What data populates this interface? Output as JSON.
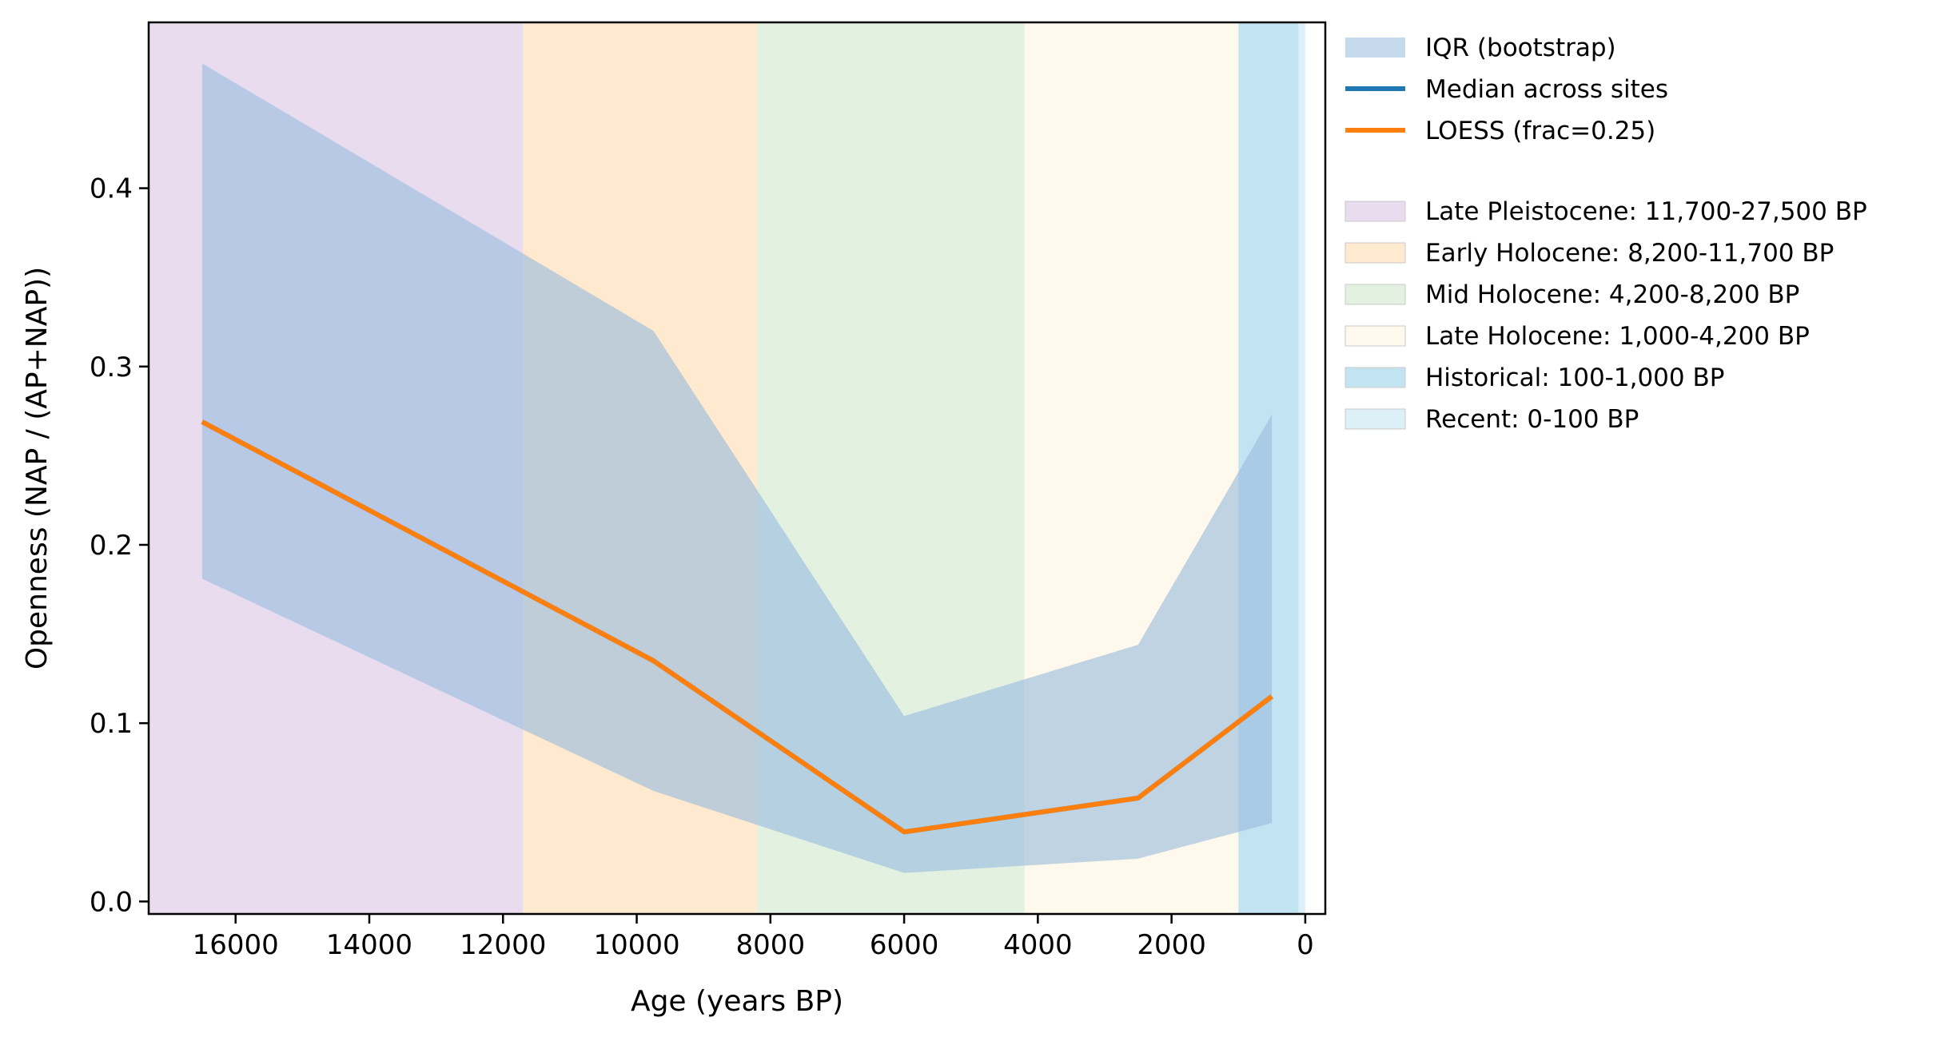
{
  "chart_data": {
    "type": "line",
    "xlabel": "Age (years BP)",
    "ylabel": "Openness (NAP / (AP+NAP))",
    "xlim": [
      17300,
      -300
    ],
    "ylim": [
      -0.007,
      0.493
    ],
    "x_reversed": true,
    "grid": false,
    "legend_position": "outside-right",
    "xticks": [
      16000,
      14000,
      12000,
      10000,
      8000,
      6000,
      4000,
      2000,
      0
    ],
    "yticks": [
      0.0,
      0.1,
      0.2,
      0.3,
      0.4
    ],
    "ytick_labels": [
      "0.0",
      "0.1",
      "0.2",
      "0.3",
      "0.4"
    ],
    "x": [
      16500,
      9750,
      6000,
      2500,
      500
    ],
    "iqr": {
      "name": "IQR (bootstrap)",
      "color": "#9dbfdf",
      "lower": [
        0.181,
        0.062,
        0.016,
        0.024,
        0.044
      ],
      "upper": [
        0.47,
        0.32,
        0.104,
        0.144,
        0.273
      ]
    },
    "series": [
      {
        "name": "Median across sites",
        "color": "#1f77b4",
        "values": [
          0.269,
          0.135,
          0.039,
          0.058,
          0.115
        ]
      },
      {
        "name": "LOESS (frac=0.25)",
        "color": "#ff7f0e",
        "values": [
          0.269,
          0.135,
          0.039,
          0.058,
          0.115
        ]
      }
    ],
    "periods": [
      {
        "label": "Late Pleistocene: 11,700-27,500 BP",
        "start": 11700,
        "end": 27500,
        "color": "#e9dcef"
      },
      {
        "label": "Early Holocene: 8,200-11,700 BP",
        "start": 8200,
        "end": 11700,
        "color": "#ffe9cf"
      },
      {
        "label": "Mid Holocene: 4,200-8,200 BP",
        "start": 4200,
        "end": 8200,
        "color": "#e3f1e1"
      },
      {
        "label": "Late Holocene: 1,000-4,200 BP",
        "start": 1000,
        "end": 4200,
        "color": "#fff8ec"
      },
      {
        "label": "Historical: 100-1,000 BP",
        "start": 100,
        "end": 1000,
        "color": "#c2e3f1"
      },
      {
        "label": "Recent: 0-100 BP",
        "start": 0,
        "end": 100,
        "color": "#ddf0f8"
      }
    ]
  }
}
